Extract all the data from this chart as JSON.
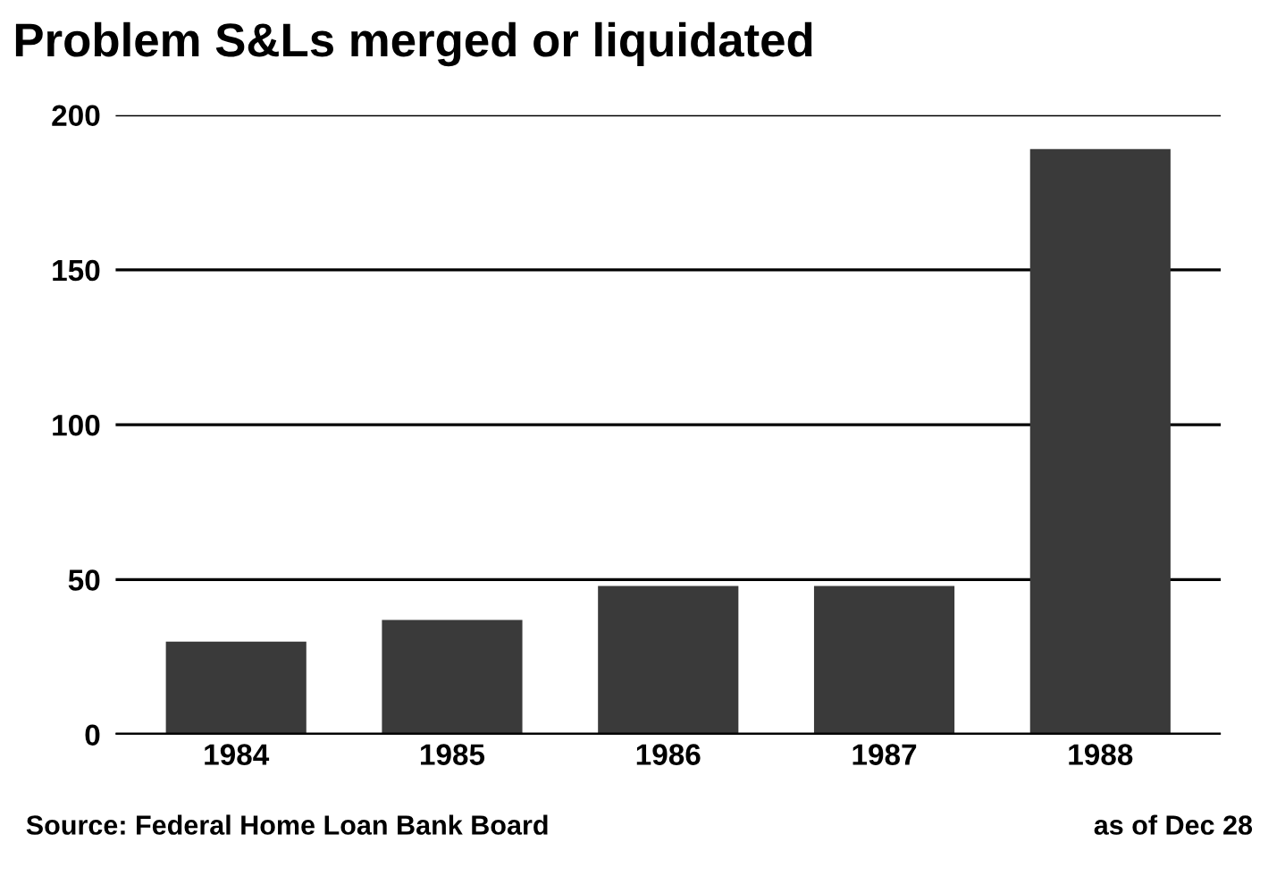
{
  "chart_data": {
    "type": "bar",
    "title": "Problem S&Ls merged or liquidated",
    "categories": [
      "1984",
      "1985",
      "1986",
      "1987",
      "1988"
    ],
    "values": [
      30,
      37,
      48,
      48,
      189
    ],
    "color": "#3a3a3a",
    "ylim": [
      0,
      200
    ],
    "yticks": [
      0,
      50,
      100,
      150,
      200
    ],
    "grid": "y",
    "annotations": [
      "Source: Federal Home Loan Bank Board",
      "as of Dec 28"
    ]
  }
}
